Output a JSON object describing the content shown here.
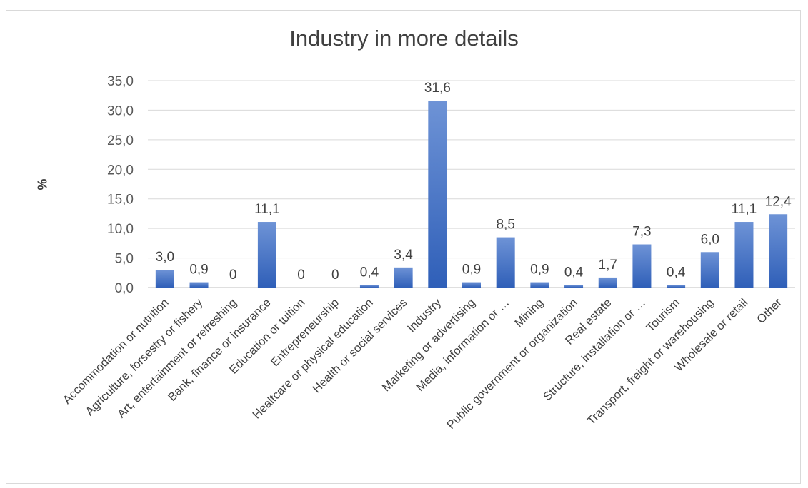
{
  "chart_data": {
    "type": "bar",
    "title": "Industry in more details",
    "xlabel": "",
    "ylabel": "%",
    "ylim": [
      0,
      35
    ],
    "yticks": [
      "0,0",
      "5,0",
      "10,0",
      "15,0",
      "20,0",
      "25,0",
      "30,0",
      "35,0"
    ],
    "grid": true,
    "legend": "none",
    "bar_color": "#4472c4",
    "categories": [
      "Accommodation or nutrition",
      "Agriculture, forsestry or fishery",
      "Art, entertainment or refreshing",
      "Bank, finance or insurance",
      "Education or tuition",
      "Entrepreneurship",
      "Healtcare or physical education",
      "Health or social services",
      "Industry",
      "Marketing or advertising",
      "Media, information or …",
      "Mining",
      "Public government or organization",
      "Real estate",
      "Structure, installation or …",
      "Tourism",
      "Transport, freight or warehousing",
      "Wholesale or retail",
      "Other"
    ],
    "values": [
      3.0,
      0.9,
      0,
      11.1,
      0,
      0,
      0.4,
      3.4,
      31.6,
      0.9,
      8.5,
      0.9,
      0.4,
      1.7,
      7.3,
      0.4,
      6.0,
      11.1,
      12.4
    ],
    "data_labels": [
      "3,0",
      "0,9",
      "0",
      "11,1",
      "0",
      "0",
      "0,4",
      "3,4",
      "31,6",
      "0,9",
      "8,5",
      "0,9",
      "0,4",
      "1,7",
      "7,3",
      "0,4",
      "6,0",
      "11,1",
      "12,4"
    ]
  }
}
